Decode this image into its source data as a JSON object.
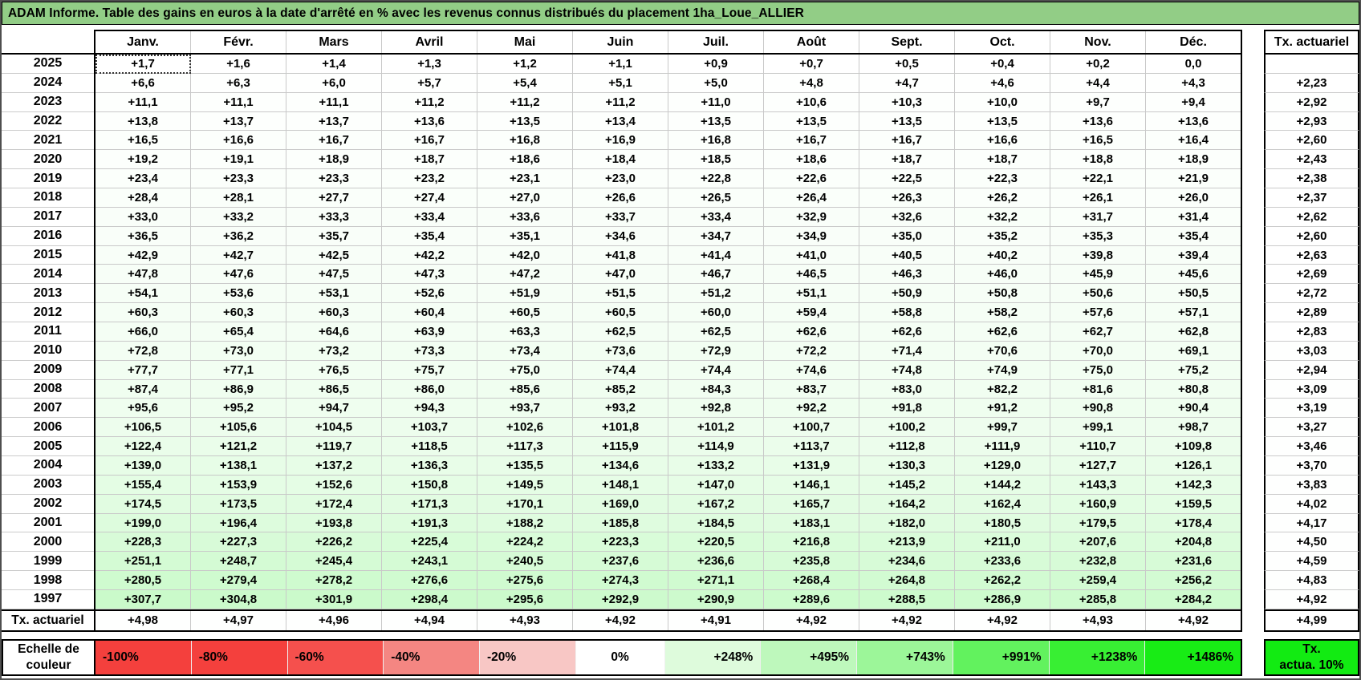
{
  "title": "ADAM Informe. Table des gains en euros à la date d'arrêté en % avec les revenus connus distribués du placement 1ha_Loue_ALLIER",
  "months": [
    "Janv.",
    "Févr.",
    "Mars",
    "Avril",
    "Mai",
    "Juin",
    "Juil.",
    "Août",
    "Sept.",
    "Oct.",
    "Nov.",
    "Déc."
  ],
  "right_column_header": "Tx. actuariel",
  "footer_label": "Tx. actuariel",
  "rows": [
    {
      "year": "2025",
      "values": [
        "+1,7",
        "+1,6",
        "+1,4",
        "+1,3",
        "+1,2",
        "+1,1",
        "+0,9",
        "+0,7",
        "+0,5",
        "+0,4",
        "+0,2",
        "0,0"
      ],
      "tx": ""
    },
    {
      "year": "2024",
      "values": [
        "+6,6",
        "+6,3",
        "+6,0",
        "+5,7",
        "+5,4",
        "+5,1",
        "+5,0",
        "+4,8",
        "+4,7",
        "+4,6",
        "+4,4",
        "+4,3"
      ],
      "tx": "+2,23"
    },
    {
      "year": "2023",
      "values": [
        "+11,1",
        "+11,1",
        "+11,1",
        "+11,2",
        "+11,2",
        "+11,2",
        "+11,0",
        "+10,6",
        "+10,3",
        "+10,0",
        "+9,7",
        "+9,4"
      ],
      "tx": "+2,92"
    },
    {
      "year": "2022",
      "values": [
        "+13,8",
        "+13,7",
        "+13,7",
        "+13,6",
        "+13,5",
        "+13,4",
        "+13,5",
        "+13,5",
        "+13,5",
        "+13,5",
        "+13,6",
        "+13,6"
      ],
      "tx": "+2,93"
    },
    {
      "year": "2021",
      "values": [
        "+16,5",
        "+16,6",
        "+16,7",
        "+16,7",
        "+16,8",
        "+16,9",
        "+16,8",
        "+16,7",
        "+16,7",
        "+16,6",
        "+16,5",
        "+16,4"
      ],
      "tx": "+2,60"
    },
    {
      "year": "2020",
      "values": [
        "+19,2",
        "+19,1",
        "+18,9",
        "+18,7",
        "+18,6",
        "+18,4",
        "+18,5",
        "+18,6",
        "+18,7",
        "+18,7",
        "+18,8",
        "+18,9"
      ],
      "tx": "+2,43"
    },
    {
      "year": "2019",
      "values": [
        "+23,4",
        "+23,3",
        "+23,3",
        "+23,2",
        "+23,1",
        "+23,0",
        "+22,8",
        "+22,6",
        "+22,5",
        "+22,3",
        "+22,1",
        "+21,9"
      ],
      "tx": "+2,38"
    },
    {
      "year": "2018",
      "values": [
        "+28,4",
        "+28,1",
        "+27,7",
        "+27,4",
        "+27,0",
        "+26,6",
        "+26,5",
        "+26,4",
        "+26,3",
        "+26,2",
        "+26,1",
        "+26,0"
      ],
      "tx": "+2,37"
    },
    {
      "year": "2017",
      "values": [
        "+33,0",
        "+33,2",
        "+33,3",
        "+33,4",
        "+33,6",
        "+33,7",
        "+33,4",
        "+32,9",
        "+32,6",
        "+32,2",
        "+31,7",
        "+31,4"
      ],
      "tx": "+2,62"
    },
    {
      "year": "2016",
      "values": [
        "+36,5",
        "+36,2",
        "+35,7",
        "+35,4",
        "+35,1",
        "+34,6",
        "+34,7",
        "+34,9",
        "+35,0",
        "+35,2",
        "+35,3",
        "+35,4"
      ],
      "tx": "+2,60"
    },
    {
      "year": "2015",
      "values": [
        "+42,9",
        "+42,7",
        "+42,5",
        "+42,2",
        "+42,0",
        "+41,8",
        "+41,4",
        "+41,0",
        "+40,5",
        "+40,2",
        "+39,8",
        "+39,4"
      ],
      "tx": "+2,63"
    },
    {
      "year": "2014",
      "values": [
        "+47,8",
        "+47,6",
        "+47,5",
        "+47,3",
        "+47,2",
        "+47,0",
        "+46,7",
        "+46,5",
        "+46,3",
        "+46,0",
        "+45,9",
        "+45,6"
      ],
      "tx": "+2,69"
    },
    {
      "year": "2013",
      "values": [
        "+54,1",
        "+53,6",
        "+53,1",
        "+52,6",
        "+51,9",
        "+51,5",
        "+51,2",
        "+51,1",
        "+50,9",
        "+50,8",
        "+50,6",
        "+50,5"
      ],
      "tx": "+2,72"
    },
    {
      "year": "2012",
      "values": [
        "+60,3",
        "+60,3",
        "+60,3",
        "+60,4",
        "+60,5",
        "+60,5",
        "+60,0",
        "+59,4",
        "+58,8",
        "+58,2",
        "+57,6",
        "+57,1"
      ],
      "tx": "+2,89"
    },
    {
      "year": "2011",
      "values": [
        "+66,0",
        "+65,4",
        "+64,6",
        "+63,9",
        "+63,3",
        "+62,5",
        "+62,5",
        "+62,6",
        "+62,6",
        "+62,6",
        "+62,7",
        "+62,8"
      ],
      "tx": "+2,83"
    },
    {
      "year": "2010",
      "values": [
        "+72,8",
        "+73,0",
        "+73,2",
        "+73,3",
        "+73,4",
        "+73,6",
        "+72,9",
        "+72,2",
        "+71,4",
        "+70,6",
        "+70,0",
        "+69,1"
      ],
      "tx": "+3,03"
    },
    {
      "year": "2009",
      "values": [
        "+77,7",
        "+77,1",
        "+76,5",
        "+75,7",
        "+75,0",
        "+74,4",
        "+74,4",
        "+74,6",
        "+74,8",
        "+74,9",
        "+75,0",
        "+75,2"
      ],
      "tx": "+2,94"
    },
    {
      "year": "2008",
      "values": [
        "+87,4",
        "+86,9",
        "+86,5",
        "+86,0",
        "+85,6",
        "+85,2",
        "+84,3",
        "+83,7",
        "+83,0",
        "+82,2",
        "+81,6",
        "+80,8"
      ],
      "tx": "+3,09"
    },
    {
      "year": "2007",
      "values": [
        "+95,6",
        "+95,2",
        "+94,7",
        "+94,3",
        "+93,7",
        "+93,2",
        "+92,8",
        "+92,2",
        "+91,8",
        "+91,2",
        "+90,8",
        "+90,4"
      ],
      "tx": "+3,19"
    },
    {
      "year": "2006",
      "values": [
        "+106,5",
        "+105,6",
        "+104,5",
        "+103,7",
        "+102,6",
        "+101,8",
        "+101,2",
        "+100,7",
        "+100,2",
        "+99,7",
        "+99,1",
        "+98,7"
      ],
      "tx": "+3,27"
    },
    {
      "year": "2005",
      "values": [
        "+122,4",
        "+121,2",
        "+119,7",
        "+118,5",
        "+117,3",
        "+115,9",
        "+114,9",
        "+113,7",
        "+112,8",
        "+111,9",
        "+110,7",
        "+109,8"
      ],
      "tx": "+3,46"
    },
    {
      "year": "2004",
      "values": [
        "+139,0",
        "+138,1",
        "+137,2",
        "+136,3",
        "+135,5",
        "+134,6",
        "+133,2",
        "+131,9",
        "+130,3",
        "+129,0",
        "+127,7",
        "+126,1"
      ],
      "tx": "+3,70"
    },
    {
      "year": "2003",
      "values": [
        "+155,4",
        "+153,9",
        "+152,6",
        "+150,8",
        "+149,5",
        "+148,1",
        "+147,0",
        "+146,1",
        "+145,2",
        "+144,2",
        "+143,3",
        "+142,3"
      ],
      "tx": "+3,83"
    },
    {
      "year": "2002",
      "values": [
        "+174,5",
        "+173,5",
        "+172,4",
        "+171,3",
        "+170,1",
        "+169,0",
        "+167,2",
        "+165,7",
        "+164,2",
        "+162,4",
        "+160,9",
        "+159,5"
      ],
      "tx": "+4,02"
    },
    {
      "year": "2001",
      "values": [
        "+199,0",
        "+196,4",
        "+193,8",
        "+191,3",
        "+188,2",
        "+185,8",
        "+184,5",
        "+183,1",
        "+182,0",
        "+180,5",
        "+179,5",
        "+178,4"
      ],
      "tx": "+4,17"
    },
    {
      "year": "2000",
      "values": [
        "+228,3",
        "+227,3",
        "+226,2",
        "+225,4",
        "+224,2",
        "+223,3",
        "+220,5",
        "+216,8",
        "+213,9",
        "+211,0",
        "+207,6",
        "+204,8"
      ],
      "tx": "+4,50"
    },
    {
      "year": "1999",
      "values": [
        "+251,1",
        "+248,7",
        "+245,4",
        "+243,1",
        "+240,5",
        "+237,6",
        "+236,6",
        "+235,8",
        "+234,6",
        "+233,6",
        "+232,8",
        "+231,6"
      ],
      "tx": "+4,59"
    },
    {
      "year": "1998",
      "values": [
        "+280,5",
        "+279,4",
        "+278,2",
        "+276,6",
        "+275,6",
        "+274,3",
        "+271,1",
        "+268,4",
        "+264,8",
        "+262,2",
        "+259,4",
        "+256,2"
      ],
      "tx": "+4,83"
    },
    {
      "year": "1997",
      "values": [
        "+307,7",
        "+304,8",
        "+301,9",
        "+298,4",
        "+295,6",
        "+292,9",
        "+290,9",
        "+289,6",
        "+288,5",
        "+286,9",
        "+285,8",
        "+284,2"
      ],
      "tx": "+4,92"
    }
  ],
  "footer": {
    "label": "Tx. actuariel",
    "values": [
      "+4,98",
      "+4,97",
      "+4,96",
      "+4,94",
      "+4,93",
      "+4,92",
      "+4,91",
      "+4,92",
      "+4,92",
      "+4,92",
      "+4,93",
      "+4,92"
    ],
    "tx": "+4,99"
  },
  "legend": {
    "label_line1": "Echelle de",
    "label_line2": "couleur",
    "cells": [
      {
        "label": "-100%",
        "color": "#f4403d",
        "align": "left"
      },
      {
        "label": "-80%",
        "color": "#f4403d",
        "align": "left"
      },
      {
        "label": "-60%",
        "color": "#f5504d",
        "align": "left"
      },
      {
        "label": "-40%",
        "color": "#f48682",
        "align": "left"
      },
      {
        "label": "-20%",
        "color": "#f8c7c5",
        "align": "left"
      },
      {
        "label": "0%",
        "color": "#ffffff",
        "align": "center"
      },
      {
        "label": "+248%",
        "color": "#defbdc",
        "align": "right"
      },
      {
        "label": "+495%",
        "color": "#bef8bc",
        "align": "right"
      },
      {
        "label": "+743%",
        "color": "#9cf699",
        "align": "right"
      },
      {
        "label": "+991%",
        "color": "#62f25e",
        "align": "right"
      },
      {
        "label": "+1238%",
        "color": "#38ef33",
        "align": "right"
      },
      {
        "label": "+1486%",
        "color": "#18ec15",
        "align": "right"
      }
    ],
    "box_line1": "Tx.",
    "box_line2": "actua. 10%",
    "box_color": "#12eb12"
  },
  "colors": {
    "title_bg": "#92cd86",
    "green_scale_max": "#00e400",
    "gridline": "#c9c9c9"
  },
  "scale_max_percent": 1486
}
